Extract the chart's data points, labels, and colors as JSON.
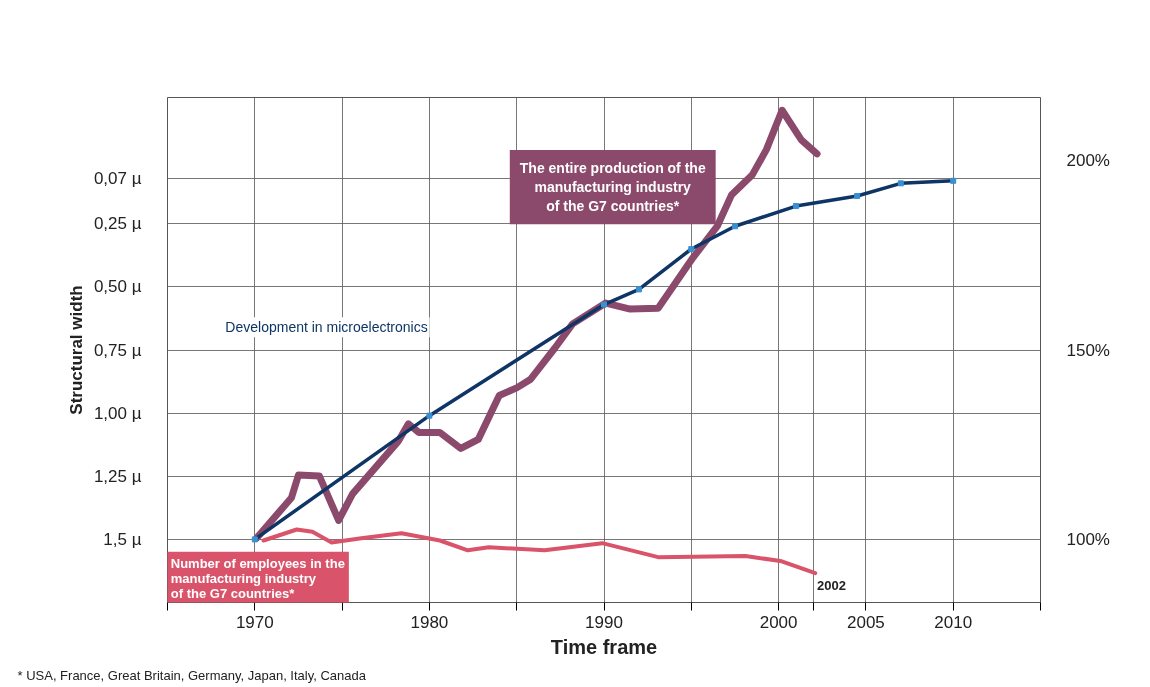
{
  "chart_data": {
    "type": "line",
    "xlabel": "Time frame",
    "ylabel": "Structural width",
    "xlim": [
      1965,
      2015
    ],
    "xticks": [
      {
        "value": 1965,
        "label": null
      },
      1970,
      {
        "value": 1975,
        "label": null
      },
      1980,
      {
        "value": 1985,
        "label": null
      },
      1990,
      {
        "value": 1995,
        "label": null
      },
      2000,
      {
        "value": 2002,
        "label": null
      },
      2005,
      2010,
      {
        "value": 2015,
        "label": null
      }
    ],
    "ylim": [
      1.75,
      -0.25
    ],
    "yticks": [
      {
        "value": 0.07,
        "label": "0,07 µ"
      },
      {
        "value": 0.25,
        "label": "0,25 µ"
      },
      {
        "value": 0.5,
        "label": "0,50 µ"
      },
      {
        "value": 0.75,
        "label": "0,75 µ"
      },
      {
        "value": 1.0,
        "label": "1,00 µ"
      },
      {
        "value": 1.25,
        "label": "1,25 µ"
      },
      {
        "value": 1.5,
        "label": "1,5 µ"
      }
    ],
    "y2lim": [
      83.33,
      216.67
    ],
    "y2ticks": [
      {
        "value": 100,
        "label": "100%"
      },
      {
        "value": 150,
        "label": "150%"
      },
      {
        "value": 200,
        "label": "200%"
      }
    ],
    "grid": true,
    "series": [
      {
        "name": "The entire production of the\nmanufacturing industry\nof the G7 countries*",
        "color": "#8b4a6b",
        "axis": "y2",
        "marker": "none",
        "x": [
          1970.1,
          1972.1,
          1972.5,
          1973.7,
          1974.8,
          1975.6,
          1978.2,
          1978.8,
          1979.4,
          1980.6,
          1981.8,
          1982.8,
          1984,
          1985,
          1985.8,
          1987.2,
          1988.2,
          1990.1,
          1991.5,
          1993.1,
          1995.1,
          1996.5,
          1997.3,
          1998.5,
          1999.3,
          2000.2,
          2001.3,
          2002.2
        ],
        "values": [
          100.3,
          111,
          117,
          116.7,
          105,
          112,
          125.8,
          130.5,
          128.2,
          128.2,
          124,
          126.4,
          138,
          140,
          142.3,
          150.6,
          156.9,
          162.4,
          160.8,
          161,
          174.4,
          182.8,
          190.9,
          196.3,
          202.9,
          213.3,
          205.5,
          201.8
        ]
      },
      {
        "name": "Number of employees in the\nmanufacturing industry\nof the G7 countries*",
        "color": "#d9546a",
        "axis": "y2",
        "marker": "none",
        "x": [
          1970.5,
          1972.4,
          1973.3,
          1974.4,
          1976.1,
          1978.4,
          1980.6,
          1982.2,
          1983.4,
          1986.6,
          1989.9,
          1993.1,
          1998.1,
          2000.1,
          2002.1
        ],
        "values": [
          99.7,
          102.6,
          102,
          99.2,
          100.3,
          101.6,
          99.7,
          97.1,
          97.9,
          97.1,
          99,
          95.3,
          95.6,
          94.3,
          91.1
        ]
      },
      {
        "name": "Development in microelectronics",
        "color": "#0f3566",
        "axis": "y",
        "marker": "square",
        "x": [
          1970,
          1980,
          1990,
          1992,
          1995,
          1997.5,
          2001,
          2004.5,
          2007,
          2010
        ],
        "values": [
          1.5,
          1.01,
          0.57,
          0.51,
          0.35,
          0.26,
          0.18,
          0.14,
          0.09,
          0.08
        ]
      }
    ],
    "annotations": [
      "2002",
      "* USA, France, Great Britain, Germany, Japan, Italy, Canada"
    ]
  }
}
